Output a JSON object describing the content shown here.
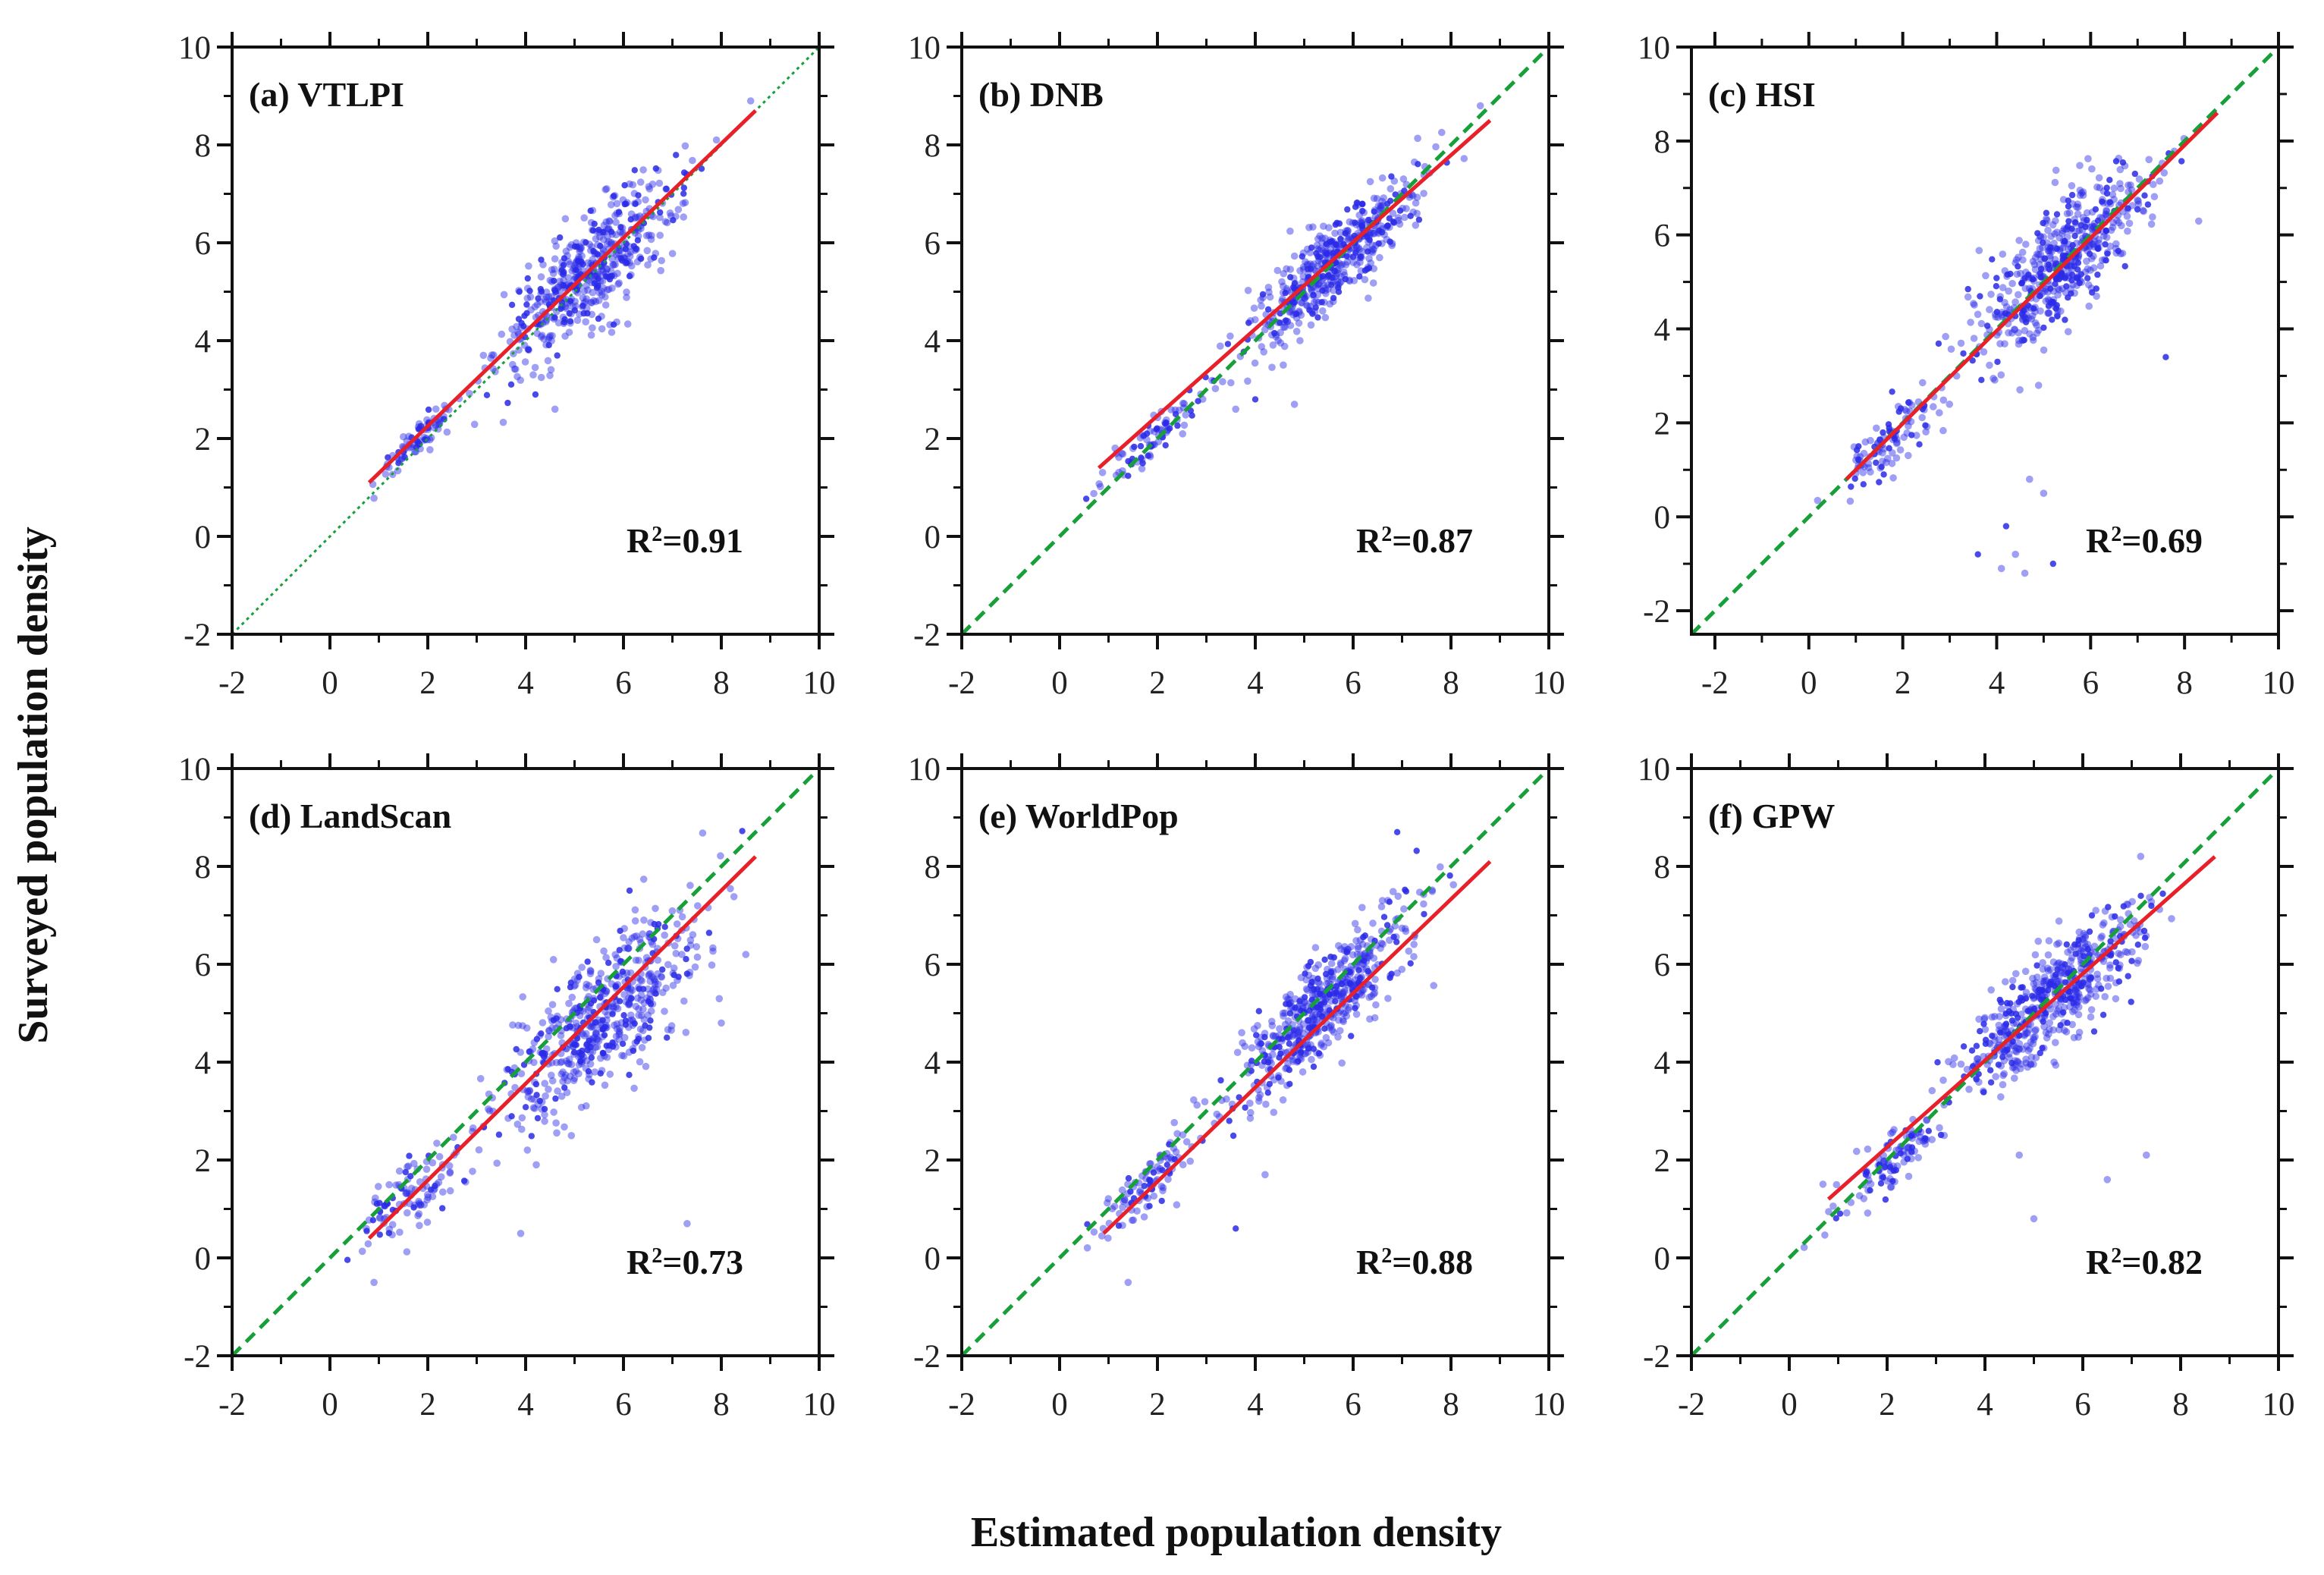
{
  "figure": {
    "xlabel": "Estimated population density",
    "ylabel": "Surveyed population density"
  },
  "colors": {
    "points": "#2a2ae8",
    "fit_line": "#e8202a",
    "identity_line": "#17a03a",
    "axis": "#111111"
  },
  "chart_data": [
    {
      "type": "scatter",
      "title": "(a) VTLPI",
      "r2_prefix": "R",
      "r2_value": "=0.91",
      "xlim": [
        -2,
        10
      ],
      "ylim": [
        -2,
        10
      ],
      "xticks": [
        -2,
        0,
        2,
        4,
        6,
        8,
        10
      ],
      "yticks": [
        -2,
        0,
        2,
        4,
        6,
        8,
        10
      ],
      "fit_line": {
        "x": [
          0.8,
          8.7
        ],
        "y": [
          1.1,
          8.7
        ]
      },
      "identity_line": {
        "x": [
          -2,
          10
        ],
        "y": [
          -2,
          10
        ],
        "style": "dotted"
      },
      "clusters": [
        {
          "cx": 1.8,
          "cy": 2.0,
          "sx": 0.45,
          "sy": 0.3,
          "n": 80
        },
        {
          "cx": 5.3,
          "cy": 5.4,
          "sx": 0.9,
          "sy": 1.0,
          "n": 520
        }
      ],
      "outliers": [
        [
          4.2,
          2.9
        ],
        [
          4.6,
          2.6
        ],
        [
          7.9,
          8.1
        ],
        [
          8.6,
          8.9
        ]
      ]
    },
    {
      "type": "scatter",
      "title": "(b) DNB",
      "r2_prefix": "R",
      "r2_value": "=0.87",
      "xlim": [
        -2,
        10
      ],
      "ylim": [
        -2,
        10
      ],
      "xticks": [
        -2,
        0,
        2,
        4,
        6,
        8,
        10
      ],
      "yticks": [
        -2,
        0,
        2,
        4,
        6,
        8,
        10
      ],
      "fit_line": {
        "x": [
          0.8,
          8.8
        ],
        "y": [
          1.4,
          8.5
        ]
      },
      "identity_line": {
        "x": [
          -2,
          10
        ],
        "y": [
          -2,
          10
        ],
        "style": "dashed"
      },
      "clusters": [
        {
          "cx": 2.0,
          "cy": 2.1,
          "sx": 0.5,
          "sy": 0.35,
          "n": 90
        },
        {
          "cx": 5.6,
          "cy": 5.6,
          "sx": 0.85,
          "sy": 0.8,
          "n": 500
        }
      ],
      "outliers": [
        [
          3.6,
          2.6
        ],
        [
          4.0,
          2.8
        ],
        [
          4.8,
          2.7
        ],
        [
          8.6,
          8.8
        ]
      ]
    },
    {
      "type": "scatter",
      "title": "(c) HSI",
      "r2_prefix": "R",
      "r2_value": "=0.69",
      "xlim": [
        -2.5,
        10
      ],
      "ylim": [
        -2.5,
        10
      ],
      "xticks": [
        -2,
        0,
        2,
        4,
        6,
        8,
        10
      ],
      "yticks": [
        -2,
        0,
        2,
        4,
        6,
        8,
        10
      ],
      "fit_line": {
        "x": [
          0.8,
          8.7
        ],
        "y": [
          0.8,
          8.6
        ]
      },
      "identity_line": {
        "x": [
          -2.5,
          10
        ],
        "y": [
          -2.5,
          10
        ],
        "style": "dashed"
      },
      "clusters": [
        {
          "cx": 1.8,
          "cy": 1.7,
          "sx": 0.6,
          "sy": 0.6,
          "n": 110
        },
        {
          "cx": 5.4,
          "cy": 5.4,
          "sx": 0.9,
          "sy": 1.2,
          "n": 540
        }
      ],
      "outliers": [
        [
          4.2,
          -0.2
        ],
        [
          4.4,
          -0.8
        ],
        [
          3.6,
          -0.8
        ],
        [
          4.6,
          -1.2
        ],
        [
          5.2,
          -1.0
        ],
        [
          4.1,
          -1.1
        ],
        [
          7.6,
          3.4
        ],
        [
          4.7,
          0.8
        ],
        [
          5.0,
          0.5
        ]
      ]
    },
    {
      "type": "scatter",
      "title": "(d) LandScan",
      "r2_prefix": "R",
      "r2_value": "=0.73",
      "xlim": [
        -2,
        10
      ],
      "ylim": [
        -2,
        10
      ],
      "xticks": [
        -2,
        0,
        2,
        4,
        6,
        8,
        10
      ],
      "yticks": [
        -2,
        0,
        2,
        4,
        6,
        8,
        10
      ],
      "fit_line": {
        "x": [
          0.8,
          8.7
        ],
        "y": [
          0.4,
          8.2
        ]
      },
      "identity_line": {
        "x": [
          -2,
          10
        ],
        "y": [
          -2,
          10
        ],
        "style": "dashed"
      },
      "clusters": [
        {
          "cx": 1.7,
          "cy": 1.3,
          "sx": 0.5,
          "sy": 0.8,
          "n": 110
        },
        {
          "cx": 5.5,
          "cy": 4.9,
          "sx": 1.0,
          "sy": 1.3,
          "n": 560
        }
      ],
      "outliers": [
        [
          3.9,
          0.5
        ],
        [
          7.3,
          0.7
        ],
        [
          8.0,
          4.8
        ],
        [
          0.9,
          -0.5
        ],
        [
          8.5,
          6.2
        ]
      ]
    },
    {
      "type": "scatter",
      "title": "(e) WorldPop",
      "r2_prefix": "R",
      "r2_value": "=0.88",
      "xlim": [
        -2,
        10
      ],
      "ylim": [
        -2,
        10
      ],
      "xticks": [
        -2,
        0,
        2,
        4,
        6,
        8,
        10
      ],
      "yticks": [
        -2,
        0,
        2,
        4,
        6,
        8,
        10
      ],
      "fit_line": {
        "x": [
          0.9,
          8.8
        ],
        "y": [
          0.5,
          8.1
        ]
      },
      "identity_line": {
        "x": [
          -2,
          10
        ],
        "y": [
          -2,
          10
        ],
        "style": "dashed"
      },
      "clusters": [
        {
          "cx": 1.8,
          "cy": 1.5,
          "sx": 0.5,
          "sy": 0.5,
          "n": 100
        },
        {
          "cx": 5.4,
          "cy": 5.2,
          "sx": 0.9,
          "sy": 0.95,
          "n": 540
        }
      ],
      "outliers": [
        [
          1.4,
          -0.5
        ],
        [
          3.6,
          0.6
        ],
        [
          4.2,
          1.7
        ],
        [
          6.9,
          8.7
        ]
      ]
    },
    {
      "type": "scatter",
      "title": "(f) GPW",
      "r2_prefix": "R",
      "r2_value": "=0.82",
      "xlim": [
        -2,
        10
      ],
      "ylim": [
        -2,
        10
      ],
      "xticks": [
        -2,
        0,
        2,
        4,
        6,
        8,
        10
      ],
      "yticks": [
        -2,
        0,
        2,
        4,
        6,
        8,
        10
      ],
      "fit_line": {
        "x": [
          0.8,
          8.7
        ],
        "y": [
          1.2,
          8.2
        ]
      },
      "identity_line": {
        "x": [
          -2,
          10
        ],
        "y": [
          -2,
          10
        ],
        "style": "dashed"
      },
      "clusters": [
        {
          "cx": 2.1,
          "cy": 2.0,
          "sx": 0.55,
          "sy": 0.5,
          "n": 110
        },
        {
          "cx": 5.4,
          "cy": 5.3,
          "sx": 0.95,
          "sy": 0.95,
          "n": 560
        }
      ],
      "outliers": [
        [
          5.0,
          0.8
        ],
        [
          6.5,
          1.6
        ],
        [
          7.3,
          2.1
        ],
        [
          4.7,
          2.1
        ]
      ]
    }
  ]
}
